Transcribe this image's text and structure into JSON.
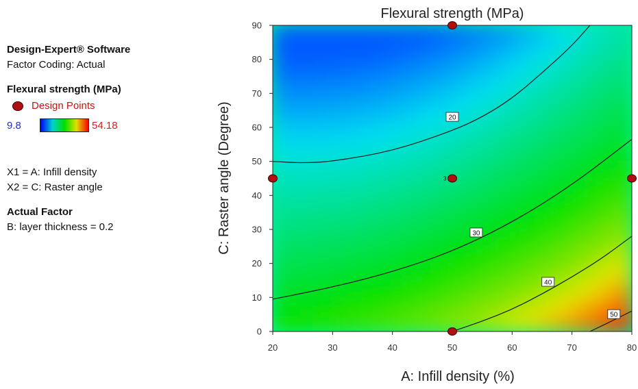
{
  "software": {
    "title": "Design-Expert® Software",
    "factor_coding": "Factor Coding: Actual"
  },
  "response": {
    "title": "Flexural strength (MPa)",
    "design_points_label": "Design Points",
    "min_label": "9.8",
    "max_label": "54.18"
  },
  "factors": {
    "x1": "X1 = A: Infill density",
    "x2": "X2 = C: Raster angle"
  },
  "actual_factor": {
    "title": "Actual Factor",
    "value": "B: layer thickness = 0.2"
  },
  "colors": {
    "low": "#0000ff",
    "cyan": "#00e0f0",
    "mid": "#00e000",
    "yellow": "#e8e800",
    "high": "#ff0000",
    "design_point": "#b01010",
    "contour_line": "#1a1a1a"
  },
  "chart_data": {
    "type": "heatmap",
    "subtype": "contour",
    "title": "Flexural strength (MPa)",
    "xlabel": "A: Infill density (%)",
    "ylabel": "C: Raster angle (Degree)",
    "xlim": [
      20,
      80
    ],
    "ylim": [
      0,
      90
    ],
    "xticks": [
      20,
      30,
      40,
      50,
      60,
      70,
      80
    ],
    "yticks": [
      0,
      10,
      20,
      30,
      40,
      50,
      60,
      70,
      80,
      90
    ],
    "zrange": [
      9.8,
      54.18
    ],
    "contours": [
      {
        "level": 20,
        "label": "20",
        "label_at": [
          50,
          63
        ],
        "points": [
          [
            20,
            50
          ],
          [
            25,
            49.5
          ],
          [
            30,
            50
          ],
          [
            40,
            53
          ],
          [
            50,
            59
          ],
          [
            55,
            63
          ],
          [
            60,
            68.5
          ],
          [
            65,
            76
          ],
          [
            70,
            84
          ],
          [
            73,
            90
          ]
        ]
      },
      {
        "level": 30,
        "label": "30",
        "label_at": [
          54,
          29
        ],
        "points": [
          [
            20,
            9.5
          ],
          [
            30,
            13
          ],
          [
            40,
            17.5
          ],
          [
            50,
            23.5
          ],
          [
            60,
            32
          ],
          [
            70,
            43
          ],
          [
            80,
            56.5
          ]
        ]
      },
      {
        "level": 40,
        "label": "40",
        "label_at": [
          66,
          14.5
        ],
        "points": [
          [
            50,
            0
          ],
          [
            55,
            3
          ],
          [
            60,
            6.5
          ],
          [
            65,
            11
          ],
          [
            70,
            16
          ],
          [
            75,
            21.5
          ],
          [
            80,
            28
          ]
        ]
      },
      {
        "level": 50,
        "label": "50",
        "label_at": [
          77,
          5
        ],
        "points": [
          [
            73,
            0
          ],
          [
            76,
            2.5
          ],
          [
            80,
            6
          ]
        ]
      }
    ],
    "design_points": [
      {
        "x": 50,
        "y": 90
      },
      {
        "x": 20,
        "y": 45
      },
      {
        "x": 50,
        "y": 45,
        "label": "3"
      },
      {
        "x": 80,
        "y": 45
      },
      {
        "x": 50,
        "y": 0
      }
    ]
  }
}
